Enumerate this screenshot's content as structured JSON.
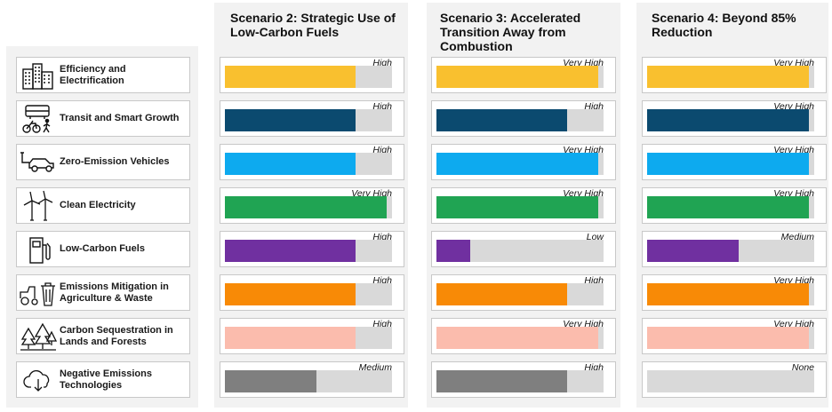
{
  "categories": [
    {
      "label": "Efficiency and Electrification",
      "icon": "buildings-icon"
    },
    {
      "label": "Transit and Smart Growth",
      "icon": "bus-bike-walk-icon"
    },
    {
      "label": "Zero-Emission Vehicles",
      "icon": "electric-car-icon"
    },
    {
      "label": "Clean Electricity",
      "icon": "wind-turbine-icon"
    },
    {
      "label": "Low-Carbon Fuels",
      "icon": "fuel-pump-icon"
    },
    {
      "label": "Emissions Mitigation in Agriculture & Waste",
      "icon": "tractor-trash-icon"
    },
    {
      "label": "Carbon Sequestration in Lands and Forests",
      "icon": "trees-icon"
    },
    {
      "label": "Negative Emissions Technologies",
      "icon": "cloud-download-icon"
    }
  ],
  "colors": [
    "#f9c02f",
    "#0b4a6f",
    "#0daaef",
    "#20a453",
    "#7030a0",
    "#f88a06",
    "#fbbcad",
    "#7f7f7f"
  ],
  "level_scale": {
    "None": 0,
    "Low": 0.2,
    "Medium": 0.55,
    "High": 0.78,
    "Very High": 0.97
  },
  "scenarios": [
    {
      "title": "Scenario 2: Strategic Use of Low-Carbon Fuels",
      "levels": [
        "High",
        "High",
        "High",
        "Very High",
        "High",
        "High",
        "High",
        "Medium"
      ]
    },
    {
      "title": "Scenario 3: Accelerated Transition Away from Combustion",
      "levels": [
        "Very High",
        "High",
        "Very High",
        "Very High",
        "Low",
        "High",
        "Very High",
        "High"
      ]
    },
    {
      "title": "Scenario 4: Beyond 85% Reduction",
      "levels": [
        "Very High",
        "Very High",
        "Very High",
        "Very High",
        "Medium",
        "Very High",
        "Very High",
        "None"
      ]
    }
  ]
}
